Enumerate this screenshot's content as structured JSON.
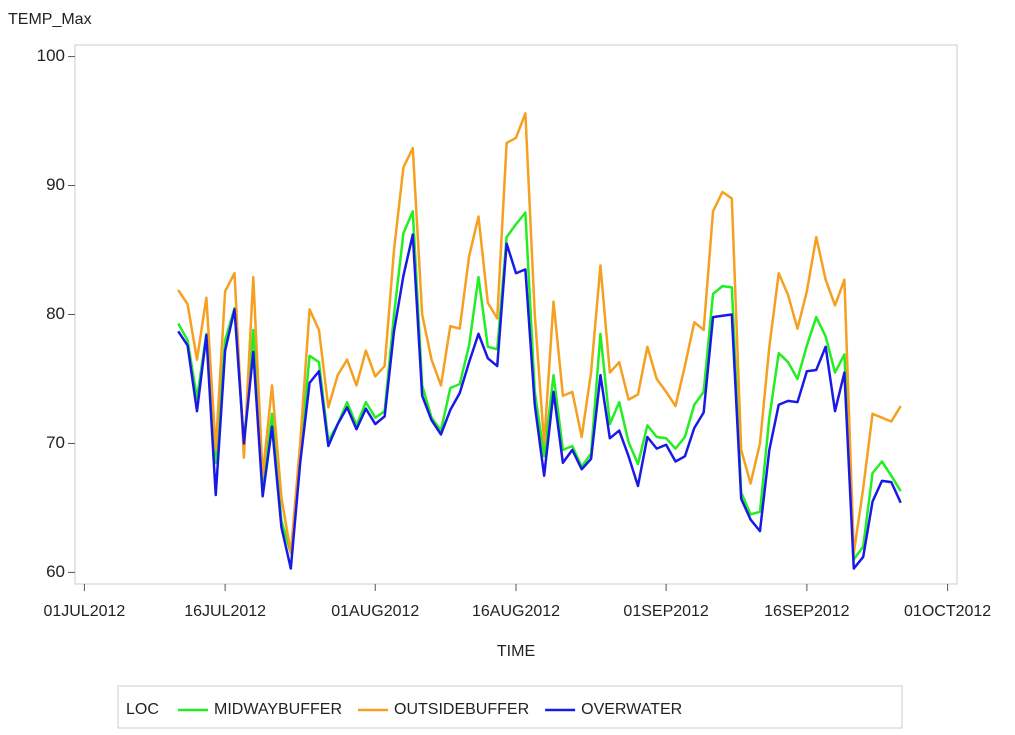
{
  "chart_data": {
    "type": "line",
    "y_label": "TEMP_Max",
    "x_label": "TIME",
    "legend_title": "LOC",
    "x": [
      "2012-07-11",
      "2012-07-12",
      "2012-07-13",
      "2012-07-14",
      "2012-07-15",
      "2012-07-16",
      "2012-07-17",
      "2012-07-18",
      "2012-07-19",
      "2012-07-20",
      "2012-07-21",
      "2012-07-22",
      "2012-07-23",
      "2012-07-24",
      "2012-07-25",
      "2012-07-26",
      "2012-07-27",
      "2012-07-28",
      "2012-07-29",
      "2012-07-30",
      "2012-07-31",
      "2012-08-01",
      "2012-08-02",
      "2012-08-03",
      "2012-08-04",
      "2012-08-05",
      "2012-08-06",
      "2012-08-07",
      "2012-08-08",
      "2012-08-09",
      "2012-08-10",
      "2012-08-11",
      "2012-08-12",
      "2012-08-13",
      "2012-08-14",
      "2012-08-15",
      "2012-08-16",
      "2012-08-17",
      "2012-08-18",
      "2012-08-19",
      "2012-08-20",
      "2012-08-21",
      "2012-08-22",
      "2012-08-23",
      "2012-08-24",
      "2012-08-25",
      "2012-08-26",
      "2012-08-27",
      "2012-08-28",
      "2012-08-29",
      "2012-08-30",
      "2012-08-31",
      "2012-09-01",
      "2012-09-02",
      "2012-09-03",
      "2012-09-04",
      "2012-09-05",
      "2012-09-06",
      "2012-09-07",
      "2012-09-08",
      "2012-09-09",
      "2012-09-10",
      "2012-09-11",
      "2012-09-12",
      "2012-09-13",
      "2012-09-14",
      "2012-09-15",
      "2012-09-16",
      "2012-09-17",
      "2012-09-18",
      "2012-09-19",
      "2012-09-20",
      "2012-09-21",
      "2012-09-22",
      "2012-09-23",
      "2012-09-24",
      "2012-09-25",
      "2012-09-26"
    ],
    "series": [
      {
        "name": "MIDWAYBUFFER",
        "color": "#22ee22",
        "values": [
          79.3,
          78,
          73.5,
          78.5,
          68.5,
          78,
          80.5,
          70,
          78.8,
          66.5,
          72.3,
          64,
          61.5,
          69,
          76.8,
          76.3,
          70.2,
          71.5,
          73.2,
          71.4,
          73.2,
          72,
          72.5,
          80,
          86.3,
          88,
          74.5,
          72,
          71,
          74.3,
          74.6,
          77.6,
          82.9,
          77.5,
          77.3,
          86,
          87,
          87.9,
          74,
          69,
          75.3,
          69.5,
          69.8,
          68.2,
          69.2,
          78.5,
          71.5,
          73.2,
          70.1,
          68.4,
          71.4,
          70.5,
          70.4,
          69.6,
          70.5,
          73,
          74,
          81.6,
          82.2,
          82.1,
          66.2,
          64.5,
          64.7,
          72,
          77,
          76.3,
          75,
          77.6,
          79.8,
          78.3,
          75.5,
          76.9,
          61,
          62,
          67.7,
          68.6,
          67.5,
          66.3
        ]
      },
      {
        "name": "OUTSIDEBUFFER",
        "color": "#f5a020",
        "values": [
          81.9,
          80.8,
          76.5,
          81.3,
          69.5,
          81.8,
          83.2,
          68.9,
          82.9,
          67.5,
          74.5,
          65.8,
          61.5,
          70,
          80.4,
          78.8,
          72.8,
          75.3,
          76.5,
          74.5,
          77.2,
          75.2,
          76,
          85,
          91.4,
          92.9,
          80,
          76.5,
          74.5,
          79.1,
          78.9,
          84.5,
          87.6,
          80.9,
          79.7,
          93.3,
          93.7,
          95.6,
          80,
          70,
          81,
          73.7,
          74,
          70.5,
          75.5,
          83.8,
          75.5,
          76.3,
          73.4,
          73.8,
          77.5,
          75,
          74,
          72.9,
          76,
          79.4,
          78.8,
          88,
          89.5,
          89,
          69.5,
          66.9,
          70,
          77.5,
          83.2,
          81.5,
          78.9,
          81.8,
          86,
          82.7,
          80.7,
          82.7,
          61.5,
          66.5,
          72.3,
          72,
          71.7,
          72.9
        ]
      },
      {
        "name": "OVERWATER",
        "color": "#1a1ae6",
        "values": [
          78.7,
          77.6,
          72.5,
          78.4,
          66,
          77.2,
          80.4,
          70,
          77.1,
          65.9,
          71.3,
          63.5,
          60.3,
          68.5,
          74.7,
          75.6,
          69.8,
          71.5,
          72.8,
          71.1,
          72.7,
          71.5,
          72.1,
          78.7,
          83,
          86.2,
          73.7,
          71.8,
          70.7,
          72.6,
          73.9,
          76.3,
          78.5,
          76.6,
          76,
          85.5,
          83.2,
          83.5,
          73,
          67.5,
          74,
          68.5,
          69.5,
          68,
          68.8,
          75.3,
          70.4,
          71,
          69,
          66.7,
          70.5,
          69.6,
          69.9,
          68.6,
          69,
          71.2,
          72.4,
          79.8,
          79.9,
          80,
          65.7,
          64.1,
          63.2,
          69.5,
          73,
          73.3,
          73.2,
          75.6,
          75.7,
          77.5,
          72.5,
          75.5,
          60.3,
          61.2,
          65.5,
          67.1,
          67,
          65.4
        ]
      }
    ],
    "xlim": [
      "2012-06-30",
      "2012-10-02"
    ],
    "xticks": [
      {
        "value": "2012-07-01",
        "label": "01JUL2012"
      },
      {
        "value": "2012-07-16",
        "label": "16JUL2012"
      },
      {
        "value": "2012-08-01",
        "label": "01AUG2012"
      },
      {
        "value": "2012-08-16",
        "label": "16AUG2012"
      },
      {
        "value": "2012-09-01",
        "label": "01SEP2012"
      },
      {
        "value": "2012-09-16",
        "label": "16SEP2012"
      },
      {
        "value": "2012-10-01",
        "label": "01OCT2012"
      }
    ],
    "ylim": [
      59.1,
      100.9
    ],
    "yticks": [
      60,
      70,
      80,
      90,
      100
    ],
    "grid": false
  }
}
